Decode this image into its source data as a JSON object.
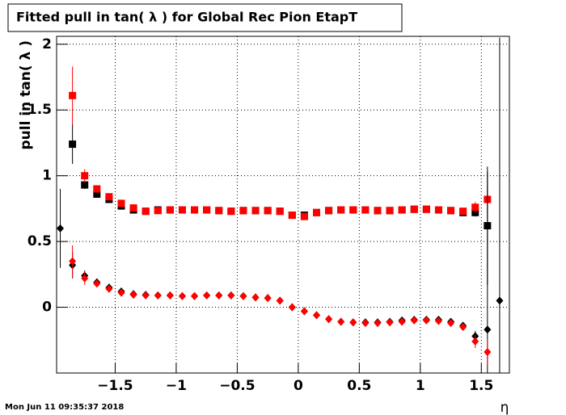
{
  "chart_data": {
    "type": "scatter",
    "title": "Fitted pull in tan( λ ) for Global Rec Pion EtapT",
    "y_label": "pull in tan( λ )",
    "x_label": "η",
    "timestamp": "Mon Jun 11 09:35:37 2018",
    "x": [
      -1.95,
      -1.85,
      -1.75,
      -1.65,
      -1.55,
      -1.45,
      -1.35,
      -1.25,
      -1.15,
      -1.05,
      -0.95,
      -0.85,
      -0.75,
      -0.65,
      -0.55,
      -0.45,
      -0.35,
      -0.25,
      -0.15,
      -0.05,
      0.05,
      0.15,
      0.25,
      0.35,
      0.45,
      0.55,
      0.65,
      0.75,
      0.85,
      0.95,
      1.05,
      1.15,
      1.25,
      1.35,
      1.45,
      1.55,
      1.65
    ],
    "series": [
      {
        "name": "black-square",
        "color": "#000000",
        "marker": "square",
        "values": [
          null,
          1.24,
          0.93,
          0.86,
          0.82,
          0.77,
          0.74,
          0.73,
          0.74,
          0.74,
          0.74,
          0.74,
          0.74,
          0.735,
          0.73,
          0.735,
          0.735,
          0.735,
          0.73,
          0.7,
          0.7,
          0.72,
          0.735,
          0.74,
          0.74,
          0.74,
          0.735,
          0.735,
          0.74,
          0.745,
          0.745,
          0.74,
          0.735,
          0.72,
          0.72,
          0.62,
          null
        ],
        "errors": [
          null,
          0.15,
          0.03,
          0.02,
          0.01,
          0.01,
          0.01,
          0.01,
          0.01,
          0.01,
          0.01,
          0.01,
          0.01,
          0.01,
          0.01,
          0.01,
          0.01,
          0.01,
          0.01,
          0.01,
          0.01,
          0.01,
          0.01,
          0.01,
          0.01,
          0.01,
          0.01,
          0.01,
          0.01,
          0.01,
          0.01,
          0.01,
          0.01,
          0.01,
          0.03,
          0.45,
          null
        ]
      },
      {
        "name": "red-square",
        "color": "#ff0000",
        "marker": "square",
        "values": [
          null,
          1.61,
          1.0,
          0.9,
          0.84,
          0.79,
          0.755,
          0.73,
          0.735,
          0.74,
          0.74,
          0.74,
          0.74,
          0.735,
          0.73,
          0.735,
          0.735,
          0.735,
          0.73,
          0.7,
          0.69,
          0.72,
          0.735,
          0.74,
          0.74,
          0.74,
          0.735,
          0.735,
          0.74,
          0.745,
          0.745,
          0.74,
          0.735,
          0.73,
          0.76,
          0.82,
          null
        ],
        "errors": [
          null,
          0.22,
          0.05,
          0.02,
          0.01,
          0.01,
          0.01,
          0.01,
          0.01,
          0.01,
          0.01,
          0.01,
          0.01,
          0.01,
          0.01,
          0.01,
          0.01,
          0.01,
          0.01,
          0.01,
          0.01,
          0.01,
          0.01,
          0.01,
          0.01,
          0.01,
          0.01,
          0.01,
          0.01,
          0.01,
          0.01,
          0.01,
          0.01,
          0.01,
          0.04,
          0.1,
          null
        ]
      },
      {
        "name": "black-diamond",
        "color": "#000000",
        "marker": "diamond",
        "values": [
          0.6,
          0.32,
          0.24,
          0.19,
          0.15,
          0.12,
          0.1,
          0.095,
          0.09,
          0.09,
          0.085,
          0.085,
          0.09,
          0.09,
          0.09,
          0.085,
          0.075,
          0.07,
          0.05,
          0.0,
          -0.03,
          -0.06,
          -0.09,
          -0.11,
          -0.115,
          -0.115,
          -0.115,
          -0.11,
          -0.1,
          -0.095,
          -0.095,
          -0.095,
          -0.11,
          -0.14,
          -0.22,
          -0.17,
          0.05
        ],
        "errors": [
          0.3,
          0.1,
          0.04,
          0.02,
          0.01,
          0.01,
          0.01,
          0.01,
          0.01,
          0.01,
          0.01,
          0.01,
          0.01,
          0.01,
          0.01,
          0.01,
          0.01,
          0.01,
          0.01,
          0.01,
          0.01,
          0.01,
          0.01,
          0.01,
          0.01,
          0.01,
          0.01,
          0.01,
          0.01,
          0.01,
          0.01,
          0.01,
          0.01,
          0.01,
          0.04,
          1.2,
          2.0
        ]
      },
      {
        "name": "red-diamond",
        "color": "#ff0000",
        "marker": "diamond",
        "values": [
          null,
          0.35,
          0.22,
          0.18,
          0.14,
          0.11,
          0.095,
          0.09,
          0.09,
          0.09,
          0.085,
          0.085,
          0.09,
          0.09,
          0.09,
          0.085,
          0.075,
          0.07,
          0.05,
          0.0,
          -0.03,
          -0.06,
          -0.09,
          -0.11,
          -0.115,
          -0.12,
          -0.12,
          -0.115,
          -0.11,
          -0.1,
          -0.1,
          -0.105,
          -0.12,
          -0.15,
          -0.26,
          -0.34,
          null
        ],
        "errors": [
          null,
          0.12,
          0.05,
          0.02,
          0.01,
          0.01,
          0.01,
          0.01,
          0.01,
          0.01,
          0.01,
          0.01,
          0.01,
          0.01,
          0.01,
          0.01,
          0.01,
          0.01,
          0.01,
          0.01,
          0.01,
          0.01,
          0.01,
          0.01,
          0.01,
          0.01,
          0.01,
          0.01,
          0.01,
          0.01,
          0.01,
          0.01,
          0.01,
          0.01,
          0.05,
          0.1,
          null
        ]
      }
    ],
    "xlim": [
      -1.98,
      1.73
    ],
    "ylim": [
      -0.5,
      2.06
    ],
    "xticks": [
      {
        "value": -1.5,
        "label": "−1.5"
      },
      {
        "value": -1,
        "label": "−1"
      },
      {
        "value": -0.5,
        "label": "−0.5"
      },
      0,
      0.5,
      1,
      1.5
    ],
    "yticks": [
      0,
      0.5,
      1,
      1.5,
      2
    ],
    "grid": true
  }
}
